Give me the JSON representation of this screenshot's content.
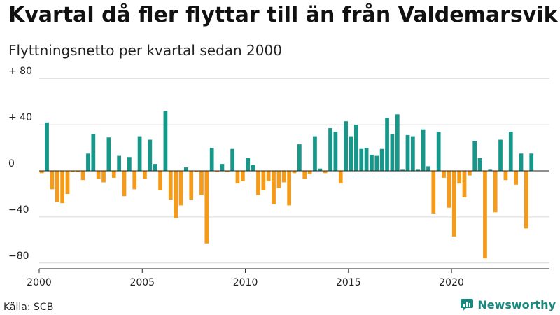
{
  "title": "Kvartal då fler flyttar till än från Valdemarsvik",
  "subtitle": "Flyttningsnetto per kvartal sedan 2000",
  "source": "Källa: SCB",
  "brand": "Newsworthy",
  "colors": {
    "positive": "#17978a",
    "negative": "#f59b1c",
    "grid": "#d9d9d9",
    "axis": "#222222",
    "brand": "#19897f"
  },
  "icons": {
    "brand": "chart-bubble-icon"
  },
  "chart_data": {
    "type": "bar",
    "start_year": 2000,
    "periods_per_year": 4,
    "title": "Kvartal då fler flyttar till än från Valdemarsvik",
    "subtitle": "Flyttningsnetto per kvartal sedan 2000",
    "ylim": [
      -85,
      85
    ],
    "xlim": [
      2000,
      2024.75
    ],
    "y_ticks": [
      80,
      40,
      0,
      -40,
      -80
    ],
    "y_tick_labels": [
      "+ 80",
      "+ 40",
      "0",
      "−40",
      "−80"
    ],
    "x_ticks": [
      2000,
      2005,
      2010,
      2015,
      2020
    ],
    "x_tick_labels": [
      "2000",
      "2005",
      "2010",
      "2015",
      "2020"
    ],
    "grid": true,
    "values": [
      -2,
      42,
      -16,
      -27,
      -28,
      -20,
      -1,
      -1,
      -8,
      15,
      32,
      -7,
      -10,
      29,
      -6,
      13,
      -22,
      12,
      -16,
      30,
      -7,
      27,
      6,
      -17,
      52,
      -25,
      -41,
      -30,
      3,
      -25,
      -1,
      -21,
      -63,
      20,
      -1,
      6,
      -1,
      19,
      -11,
      -9,
      11,
      5,
      -21,
      -17,
      -9,
      -29,
      -15,
      -10,
      -30,
      -2,
      23,
      -7,
      -3,
      30,
      2,
      -2,
      37,
      34,
      -11,
      43,
      30,
      40,
      19,
      20,
      14,
      13,
      19,
      46,
      32,
      49,
      1,
      31,
      30,
      1,
      36,
      4,
      -37,
      34,
      -6,
      -32,
      -57,
      -11,
      -23,
      -4,
      26,
      11,
      -76,
      1,
      -36,
      27,
      -8,
      34,
      -12,
      15,
      -50,
      15
    ]
  }
}
